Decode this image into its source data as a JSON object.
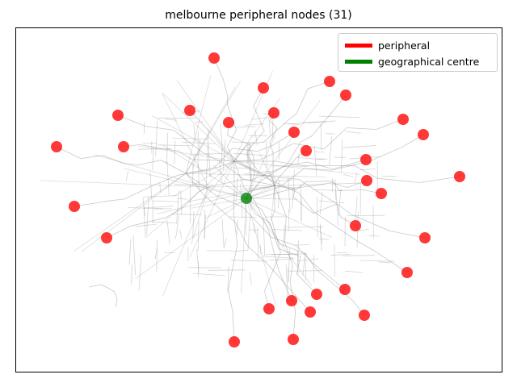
{
  "chart_data": {
    "type": "scatter",
    "title": "melbourne peripheral nodes (31)",
    "xlabel": "",
    "ylabel": "",
    "grid": false,
    "axes_ticks": false,
    "legend_placement": "top-right",
    "background": "road network (gray)",
    "colors": {
      "peripheral": "#ff0000",
      "centre": "#008000",
      "network": "#888888"
    },
    "legend": [
      {
        "name": "peripheral",
        "color": "#ff0000"
      },
      {
        "name": "geographical centre",
        "color": "#008000"
      }
    ],
    "series": [
      {
        "name": "peripheral",
        "color": "#ff0000",
        "points": [
          [
            265,
            72
          ],
          [
            326,
            109
          ],
          [
            408,
            101
          ],
          [
            428,
            118
          ],
          [
            235,
            137
          ],
          [
            339,
            140
          ],
          [
            146,
            143
          ],
          [
            283,
            152
          ],
          [
            499,
            148
          ],
          [
            364,
            164
          ],
          [
            524,
            167
          ],
          [
            70,
            182
          ],
          [
            153,
            182
          ],
          [
            379,
            187
          ],
          [
            453,
            198
          ],
          [
            569,
            219
          ],
          [
            454,
            224
          ],
          [
            472,
            240
          ],
          [
            92,
            256
          ],
          [
            440,
            280
          ],
          [
            132,
            295
          ],
          [
            526,
            295
          ],
          [
            504,
            338
          ],
          [
            427,
            359
          ],
          [
            392,
            365
          ],
          [
            361,
            373
          ],
          [
            333,
            383
          ],
          [
            384,
            387
          ],
          [
            451,
            391
          ],
          [
            363,
            421
          ],
          [
            290,
            424
          ]
        ]
      },
      {
        "name": "geographical centre",
        "color": "#008000",
        "points": [
          [
            305,
            246
          ]
        ]
      }
    ]
  }
}
